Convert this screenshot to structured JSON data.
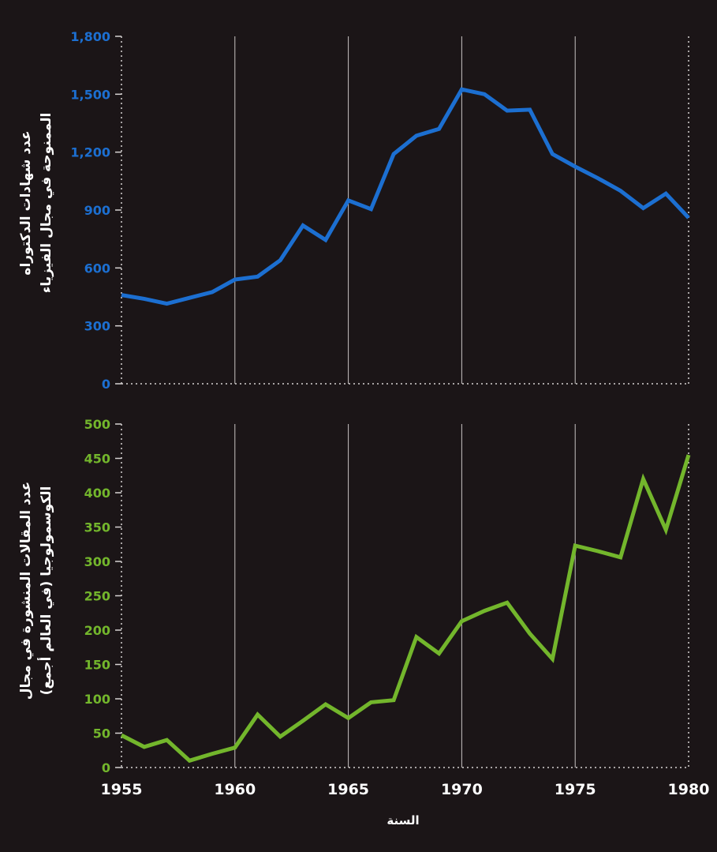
{
  "chart_data": [
    {
      "type": "line",
      "ylabel_lines": [
        "عدد شهادات الدكتوراه",
        "الممنوحة في مجال الفيزياء"
      ],
      "xlabel": "",
      "color": "#1c6fd1",
      "ylim": [
        0,
        1800
      ],
      "yticks": [
        0,
        300,
        600,
        900,
        1200,
        1500,
        1800
      ],
      "ytick_labels": [
        "0",
        "300",
        "600",
        "900",
        "1,200",
        "1,500",
        "1,800"
      ],
      "xlim": [
        1955,
        1980
      ],
      "grid": "vertical lines at 1960, 1965, 1970, 1975",
      "x": [
        1955,
        1956,
        1957,
        1958,
        1959,
        1960,
        1961,
        1962,
        1963,
        1964,
        1965,
        1966,
        1967,
        1968,
        1969,
        1970,
        1971,
        1972,
        1973,
        1974,
        1975,
        1976,
        1977,
        1978,
        1979,
        1980
      ],
      "values": [
        460,
        440,
        415,
        445,
        475,
        540,
        555,
        640,
        820,
        745,
        950,
        905,
        1190,
        1285,
        1320,
        1525,
        1500,
        1415,
        1420,
        1190,
        1125,
        1065,
        1000,
        910,
        985,
        860
      ]
    },
    {
      "type": "line",
      "ylabel_lines": [
        "عدد المقالات المنشورة في مجال",
        "الكوسمولوجيا (في العالم أجمع)"
      ],
      "xlabel": "السنة",
      "color": "#73b62c",
      "ylim": [
        0,
        500
      ],
      "yticks": [
        0,
        50,
        100,
        150,
        200,
        250,
        300,
        350,
        400,
        450,
        500
      ],
      "ytick_labels": [
        "0",
        "50",
        "100",
        "150",
        "200",
        "250",
        "300",
        "350",
        "400",
        "450",
        "500"
      ],
      "xlim": [
        1955,
        1980
      ],
      "xticks": [
        1955,
        1960,
        1965,
        1970,
        1975,
        1980
      ],
      "xtick_labels": [
        "1955",
        "1960",
        "1965",
        "1970",
        "1975",
        "1980"
      ],
      "grid": "vertical lines at 1960, 1965, 1970, 1975",
      "x": [
        1955,
        1956,
        1957,
        1958,
        1959,
        1960,
        1961,
        1962,
        1963,
        1964,
        1965,
        1966,
        1967,
        1968,
        1969,
        1970,
        1971,
        1972,
        1973,
        1974,
        1975,
        1976,
        1977,
        1978,
        1979,
        1980
      ],
      "values": [
        47,
        30,
        40,
        10,
        20,
        29,
        77,
        45,
        68,
        92,
        72,
        95,
        98,
        190,
        166,
        213,
        228,
        240,
        195,
        158,
        323,
        315,
        306,
        420,
        346,
        455
      ]
    }
  ]
}
